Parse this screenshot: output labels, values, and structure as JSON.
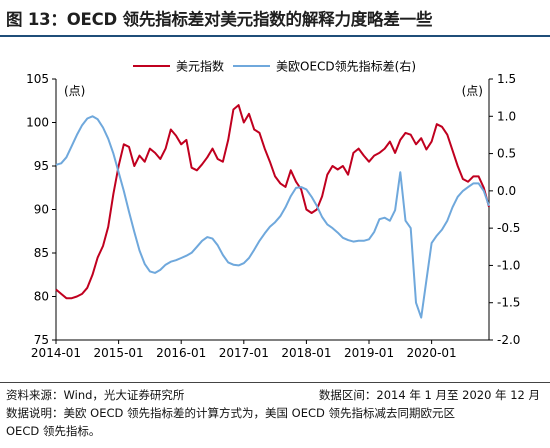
{
  "figure": {
    "title": "图 13：OECD 领先指标差对美元指数的解释力度略差一些"
  },
  "chart_data": {
    "type": "line",
    "x": [
      "2014-01",
      "2014-02",
      "2014-03",
      "2014-04",
      "2014-05",
      "2014-06",
      "2014-07",
      "2014-08",
      "2014-09",
      "2014-10",
      "2014-11",
      "2014-12",
      "2015-01",
      "2015-02",
      "2015-03",
      "2015-04",
      "2015-05",
      "2015-06",
      "2015-07",
      "2015-08",
      "2015-09",
      "2015-10",
      "2015-11",
      "2015-12",
      "2016-01",
      "2016-02",
      "2016-03",
      "2016-04",
      "2016-05",
      "2016-06",
      "2016-07",
      "2016-08",
      "2016-09",
      "2016-10",
      "2016-11",
      "2016-12",
      "2017-01",
      "2017-02",
      "2017-03",
      "2017-04",
      "2017-05",
      "2017-06",
      "2017-07",
      "2017-08",
      "2017-09",
      "2017-10",
      "2017-11",
      "2017-12",
      "2018-01",
      "2018-02",
      "2018-03",
      "2018-04",
      "2018-05",
      "2018-06",
      "2018-07",
      "2018-08",
      "2018-09",
      "2018-10",
      "2018-11",
      "2018-12",
      "2019-01",
      "2019-02",
      "2019-03",
      "2019-04",
      "2019-05",
      "2019-06",
      "2019-07",
      "2019-08",
      "2019-09",
      "2019-10",
      "2019-11",
      "2019-12",
      "2020-01",
      "2020-02",
      "2020-03",
      "2020-04",
      "2020-05",
      "2020-06",
      "2020-07",
      "2020-08",
      "2020-09",
      "2020-10",
      "2020-11",
      "2020-12"
    ],
    "x_tick_labels": [
      "2014-01",
      "2015-01",
      "2016-01",
      "2017-01",
      "2018-01",
      "2019-01",
      "2020-01"
    ],
    "series": [
      {
        "name": "美元指数",
        "axis": "left",
        "color": "#c0001f",
        "values": [
          80.8,
          80.3,
          79.8,
          79.8,
          80.0,
          80.3,
          81.0,
          82.5,
          84.5,
          85.8,
          88.0,
          91.8,
          95.0,
          97.5,
          97.2,
          95.0,
          96.2,
          95.5,
          97.0,
          96.5,
          95.8,
          97.0,
          99.2,
          98.5,
          97.5,
          98.0,
          94.8,
          94.5,
          95.2,
          96.0,
          97.0,
          95.8,
          95.5,
          98.0,
          101.5,
          102.0,
          100.0,
          101.0,
          99.2,
          98.8,
          97.0,
          95.5,
          93.8,
          93.0,
          92.6,
          94.5,
          93.2,
          92.3,
          90.0,
          89.6,
          90.0,
          91.5,
          94.0,
          95.0,
          94.6,
          95.0,
          94.0,
          96.5,
          97.0,
          96.2,
          95.5,
          96.2,
          96.5,
          97.0,
          97.8,
          96.5,
          98.0,
          98.8,
          98.6,
          97.5,
          98.2,
          96.9,
          97.8,
          99.8,
          99.5,
          98.6,
          96.8,
          95.0,
          93.5,
          93.2,
          93.8,
          93.8,
          92.5,
          90.3
        ]
      },
      {
        "name": "美欧OECD领先指标差(右)",
        "axis": "right",
        "color": "#6fa8dc",
        "values": [
          0.35,
          0.37,
          0.45,
          0.6,
          0.75,
          0.88,
          0.97,
          1.0,
          0.96,
          0.85,
          0.7,
          0.5,
          0.25,
          0.0,
          -0.28,
          -0.55,
          -0.8,
          -0.98,
          -1.08,
          -1.1,
          -1.06,
          -0.99,
          -0.95,
          -0.93,
          -0.9,
          -0.87,
          -0.83,
          -0.75,
          -0.67,
          -0.62,
          -0.64,
          -0.73,
          -0.86,
          -0.96,
          -0.99,
          -1.0,
          -0.97,
          -0.9,
          -0.79,
          -0.67,
          -0.57,
          -0.48,
          -0.42,
          -0.34,
          -0.22,
          -0.07,
          0.04,
          0.05,
          0.02,
          -0.08,
          -0.2,
          -0.35,
          -0.45,
          -0.5,
          -0.56,
          -0.63,
          -0.66,
          -0.68,
          -0.67,
          -0.67,
          -0.65,
          -0.55,
          -0.38,
          -0.36,
          -0.4,
          -0.26,
          0.25,
          -0.4,
          -0.5,
          -1.5,
          -1.7,
          -1.2,
          -0.7,
          -0.6,
          -0.52,
          -0.4,
          -0.22,
          -0.08,
          0.0,
          0.05,
          0.1,
          0.1,
          0.0,
          -0.2
        ]
      }
    ],
    "left_axis": {
      "unit_label": "(点)",
      "ylim": [
        75,
        105
      ],
      "ticks": [
        "105",
        "100",
        "95",
        "90",
        "85",
        "80",
        "75"
      ]
    },
    "right_axis": {
      "unit_label": "(点)",
      "ylim": [
        -2.0,
        1.5
      ],
      "ticks": [
        "1.5",
        "1.0",
        "0.5",
        "0.0",
        "-0.5",
        "-1.0",
        "-1.5",
        "-2.0"
      ]
    },
    "grid": false,
    "legend": "top-center"
  },
  "footer": {
    "source_label": "资料来源：Wind，光大证券研究所",
    "range_label": "数据区间：2014 年 1 月至 2020 年 12 月",
    "note_line1": "数据说明：美欧 OECD 领先指标差的计算方式为，美国 OECD 领先指标减去同期欧元区",
    "note_line2": "OECD 领先指标。"
  }
}
